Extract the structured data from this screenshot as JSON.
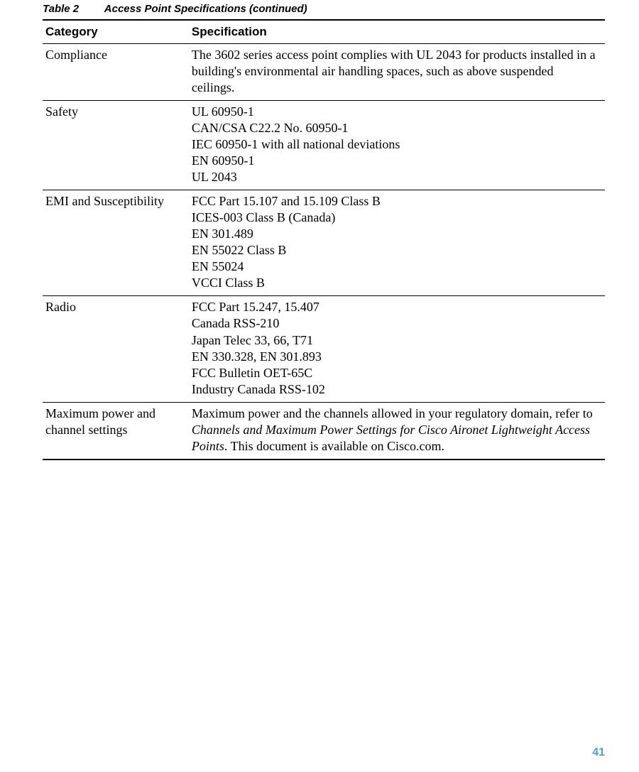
{
  "colors": {
    "page_number": "#4da0cf",
    "text": "#000000",
    "border": "#000000",
    "background": "#ffffff"
  },
  "caption": {
    "label": "Table 2",
    "title": "Access Point Specifications  (continued)"
  },
  "headers": {
    "category": "Category",
    "specification": "Specification"
  },
  "rows": [
    {
      "category": "Compliance",
      "spec_plain": "The 3602 series access point complies with UL 2043 for products installed in a building's environmental air handling spaces, such as above suspended ceilings."
    },
    {
      "category": "Safety",
      "spec_lines": [
        "UL 60950-1",
        "CAN/CSA C22.2 No. 60950-1",
        "IEC 60950-1 with all national deviations",
        "EN 60950-1",
        "UL 2043"
      ]
    },
    {
      "category": "EMI and Susceptibility",
      "spec_lines": [
        "FCC Part 15.107 and 15.109 Class B",
        "ICES-003 Class B (Canada)",
        "EN 301.489",
        "EN 55022 Class B",
        "EN 55024",
        "VCCI Class B"
      ]
    },
    {
      "category": "Radio",
      "spec_lines": [
        "FCC Part 15.247, 15.407",
        "Canada RSS-210",
        "Japan Telec 33, 66, T71",
        "EN 330.328, EN 301.893",
        "FCC Bulletin OET-65C",
        "Industry Canada RSS-102"
      ]
    },
    {
      "category": "Maximum power and channel settings",
      "spec_rich": {
        "pre": "Maximum power and the channels allowed in your regulatory domain, refer to ",
        "italic": "Channels and Maximum Power Settings for Cisco Aironet Lightweight Access Points",
        "post": ". This document is available on Cisco.com."
      }
    }
  ],
  "page_number": "41"
}
